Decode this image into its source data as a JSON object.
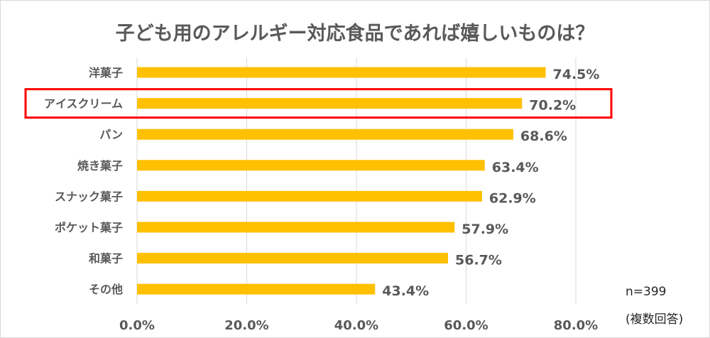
{
  "chart_data": {
    "type": "bar",
    "orientation": "horizontal",
    "title": "子ども用のアレルギー対応食品であれば嬉しいものは？",
    "categories": [
      "洋菓子",
      "アイスクリーム",
      "パン",
      "焼き菓子",
      "スナック菓子",
      "ポケット菓子",
      "和菓子",
      "その他"
    ],
    "values": [
      74.5,
      70.2,
      68.6,
      63.4,
      62.9,
      57.9,
      56.7,
      43.4
    ],
    "data_labels": [
      "74.5%",
      "70.2%",
      "68.6%",
      "63.4%",
      "62.9%",
      "57.9%",
      "56.7%",
      "43.4%"
    ],
    "xlim": [
      0,
      80
    ],
    "x_ticks": [
      "0.0%",
      "20.0%",
      "40.0%",
      "60.0%",
      "80.0%"
    ],
    "grid": true,
    "bar_color": "#FFC000",
    "highlight": {
      "category": "アイスクリーム",
      "color": "#FF0000"
    },
    "annotations": [
      "n=399",
      "(複数回答)"
    ]
  }
}
